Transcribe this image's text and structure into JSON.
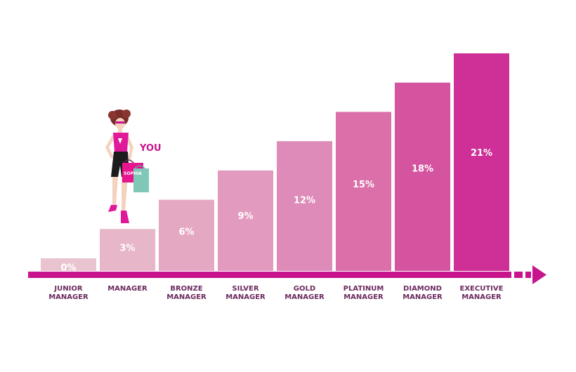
{
  "chart_data": {
    "type": "bar",
    "categories": [
      [
        "JUNIOR",
        "MANAGER"
      ],
      [
        "MANAGER"
      ],
      [
        "BRONZE",
        "MANAGER"
      ],
      [
        "SILVER",
        "MANAGER"
      ],
      [
        "GOLD",
        "MANAGER"
      ],
      [
        "PLATINUM",
        "MANAGER"
      ],
      [
        "DIAMOND",
        "MANAGER"
      ],
      [
        "EXECUTIVE",
        "MANAGER"
      ]
    ],
    "values": [
      0,
      3,
      6,
      9,
      12,
      15,
      18,
      21
    ],
    "value_labels": [
      "0%",
      "3%",
      "6%",
      "9%",
      "12%",
      "15%",
      "18%",
      "21%"
    ],
    "bar_colors": [
      "#eac3d0",
      "#e8b6c9",
      "#e5a8c3",
      "#e29abf",
      "#de8bba",
      "#da6faa",
      "#d4549f",
      "#cf3097"
    ],
    "axis_color": "#c8148c",
    "label_color": "#6b2a5e",
    "you_marker": {
      "label": "YOU",
      "category_index": 1,
      "color": "#c8148c"
    },
    "bag_text": "SOPHIA"
  }
}
